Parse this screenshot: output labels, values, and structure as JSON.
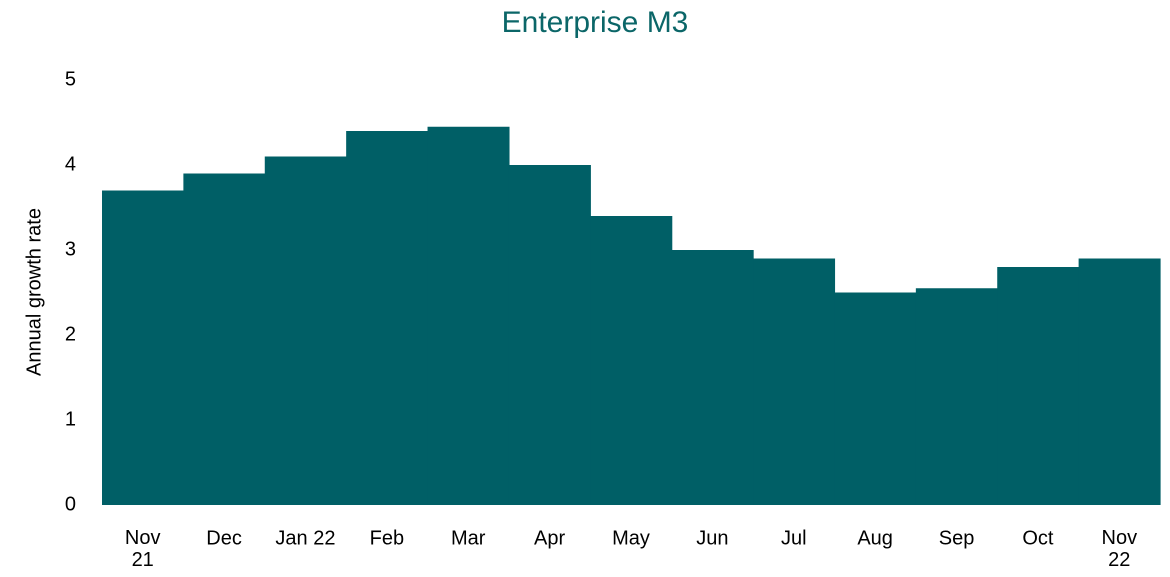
{
  "chart_data": {
    "type": "step-area",
    "title": "Enterprise M3",
    "y_label": "Annual growth rate",
    "categories": [
      "Nov\n21",
      "Dec",
      "Jan 22",
      "Feb",
      "Mar",
      "Apr",
      "May",
      "Jun",
      "Jul",
      "Aug",
      "Sep",
      "Oct",
      "Nov\n22"
    ],
    "values": [
      3.7,
      3.9,
      4.1,
      4.4,
      4.45,
      4.0,
      3.4,
      3.0,
      2.9,
      2.5,
      2.55,
      2.8,
      2.9
    ],
    "color": "#005f66",
    "ylim": [
      0,
      5
    ],
    "yticks": [
      0,
      1,
      2,
      3,
      4,
      5
    ],
    "grid": false
  }
}
